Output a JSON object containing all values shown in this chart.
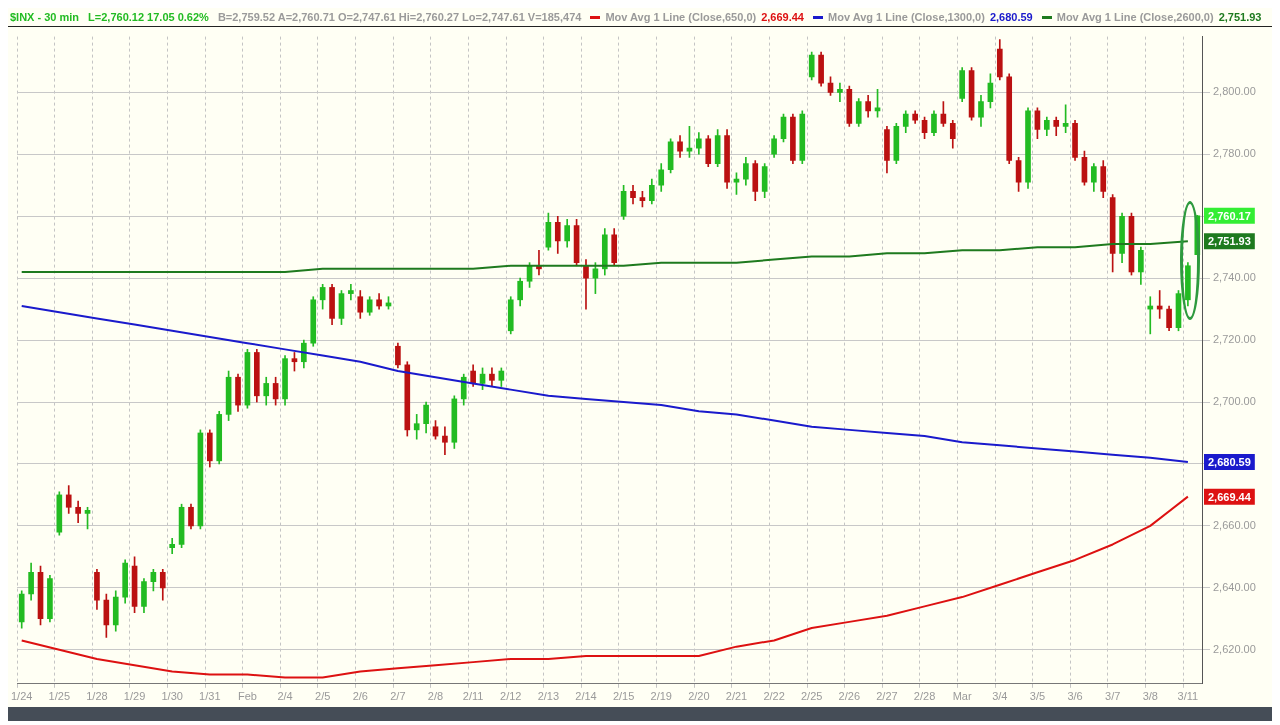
{
  "chart_data": {
    "type": "candlestick",
    "title": "$INX - 30 min",
    "subtitle": "L=2,760.12  17.05  0.62%",
    "annotations": [
      "B=2,759.52  A=2,760.71  O=2,747.61  Hi=2,760.27  Lo=2,747.61  V=185,474",
      "2,760.17"
    ],
    "categories": [
      "1/24",
      null,
      null,
      null,
      "1/25",
      null,
      null,
      null,
      "1/28",
      null,
      null,
      null,
      "1/29",
      null,
      null,
      null,
      "1/30",
      null,
      null,
      null,
      "1/31",
      null,
      null,
      null,
      "Feb",
      null,
      null,
      null,
      "2/4",
      null,
      null,
      null,
      "2/5",
      null,
      null,
      null,
      "2/6",
      null,
      null,
      null,
      "2/7",
      null,
      null,
      null,
      "2/8",
      null,
      null,
      null,
      "2/11",
      null,
      null,
      null,
      "2/12",
      null,
      null,
      null,
      "2/13",
      null,
      null,
      null,
      "2/14",
      null,
      null,
      null,
      "2/15",
      null,
      null,
      null,
      "2/19",
      null,
      null,
      null,
      "2/20",
      null,
      null,
      null,
      "2/21",
      null,
      null,
      null,
      "2/22",
      null,
      null,
      null,
      "2/25",
      null,
      null,
      null,
      "2/26",
      null,
      null,
      null,
      "2/27",
      null,
      null,
      null,
      "2/28",
      null,
      null,
      null,
      "Mar",
      null,
      null,
      null,
      "3/4",
      null,
      null,
      null,
      "3/5",
      null,
      null,
      null,
      "3/6",
      null,
      null,
      null,
      "3/7",
      null,
      null,
      null,
      "3/8",
      null,
      null,
      null,
      "3/11",
      null
    ],
    "ohlc": [
      [
        2629,
        2639,
        2627,
        2638
      ],
      [
        2638,
        2648,
        2636,
        2645
      ],
      [
        2645,
        2647,
        2628,
        2630
      ],
      [
        2630,
        2644,
        2629,
        2643
      ],
      [
        2658,
        2671,
        2657,
        2670
      ],
      [
        2670,
        2673,
        2664,
        2666
      ],
      [
        2666,
        2668,
        2661,
        2664
      ],
      [
        2664,
        2666,
        2659,
        2665
      ],
      [
        2645,
        2646,
        2633,
        2636
      ],
      [
        2636,
        2638,
        2624,
        2628
      ],
      [
        2628,
        2639,
        2626,
        2637
      ],
      [
        2637,
        2649,
        2635,
        2648
      ],
      [
        2647,
        2650,
        2632,
        2634
      ],
      [
        2634,
        2643,
        2632,
        2642
      ],
      [
        2642,
        2646,
        2639,
        2645
      ],
      [
        2645,
        2646,
        2636,
        2640
      ],
      [
        2653,
        2656,
        2651,
        2654
      ],
      [
        2654,
        2667,
        2653,
        2666
      ],
      [
        2666,
        2667,
        2659,
        2660
      ],
      [
        2660,
        2691,
        2659,
        2690
      ],
      [
        2690,
        2691,
        2679,
        2681
      ],
      [
        2681,
        2697,
        2680,
        2696
      ],
      [
        2696,
        2710,
        2694,
        2708
      ],
      [
        2708,
        2709,
        2697,
        2699
      ],
      [
        2699,
        2717,
        2698,
        2716
      ],
      [
        2716,
        2717,
        2700,
        2702
      ],
      [
        2702,
        2708,
        2699,
        2706
      ],
      [
        2706,
        2708,
        2699,
        2701
      ],
      [
        2701,
        2715,
        2699,
        2714
      ],
      [
        2714,
        2716,
        2710,
        2713
      ],
      [
        2713,
        2720,
        2711,
        2719
      ],
      [
        2719,
        2734,
        2718,
        2733
      ],
      [
        2733,
        2738,
        2730,
        2737
      ],
      [
        2737,
        2738,
        2725,
        2727
      ],
      [
        2727,
        2736,
        2725,
        2735
      ],
      [
        2735,
        2738,
        2733,
        2736
      ],
      [
        2734,
        2736,
        2727,
        2729
      ],
      [
        2729,
        2734,
        2728,
        2733
      ],
      [
        2733,
        2735,
        2730,
        2731
      ],
      [
        2731,
        2734,
        2730,
        2732
      ],
      [
        2718,
        2719,
        2711,
        2712
      ],
      [
        2712,
        2713,
        2689,
        2691
      ],
      [
        2691,
        2696,
        2688,
        2693
      ],
      [
        2693,
        2700,
        2690,
        2699
      ],
      [
        2692,
        2694,
        2688,
        2689
      ],
      [
        2689,
        2692,
        2683,
        2687
      ],
      [
        2687,
        2702,
        2685,
        2701
      ],
      [
        2701,
        2709,
        2699,
        2708
      ],
      [
        2710,
        2712,
        2705,
        2706
      ],
      [
        2706,
        2711,
        2704,
        2709
      ],
      [
        2709,
        2711,
        2705,
        2707
      ],
      [
        2707,
        2711,
        2705,
        2710
      ],
      [
        2723,
        2734,
        2722,
        2733
      ],
      [
        2733,
        2740,
        2731,
        2739
      ],
      [
        2739,
        2745,
        2737,
        2744
      ],
      [
        2744,
        2749,
        2741,
        2743
      ],
      [
        2750,
        2761,
        2749,
        2758
      ],
      [
        2758,
        2760,
        2748,
        2752
      ],
      [
        2752,
        2759,
        2750,
        2757
      ],
      [
        2757,
        2759,
        2744,
        2745
      ],
      [
        2744,
        2746,
        2730,
        2740
      ],
      [
        2740,
        2745,
        2735,
        2743
      ],
      [
        2743,
        2756,
        2741,
        2754
      ],
      [
        2754,
        2756,
        2744,
        2745
      ],
      [
        2760,
        2770,
        2759,
        2768
      ],
      [
        2768,
        2770,
        2764,
        2766
      ],
      [
        2766,
        2768,
        2763,
        2765
      ],
      [
        2765,
        2772,
        2764,
        2770
      ],
      [
        2770,
        2777,
        2768,
        2775
      ],
      [
        2775,
        2785,
        2774,
        2784
      ],
      [
        2784,
        2786,
        2779,
        2781
      ],
      [
        2781,
        2789,
        2779,
        2782
      ],
      [
        2782,
        2787,
        2780,
        2785
      ],
      [
        2785,
        2786,
        2776,
        2777
      ],
      [
        2777,
        2788,
        2776,
        2786
      ],
      [
        2786,
        2788,
        2769,
        2771
      ],
      [
        2771,
        2774,
        2767,
        2772
      ],
      [
        2772,
        2779,
        2770,
        2777
      ],
      [
        2777,
        2778,
        2765,
        2768
      ],
      [
        2768,
        2777,
        2766,
        2776
      ],
      [
        2780,
        2786,
        2779,
        2785
      ],
      [
        2785,
        2793,
        2784,
        2792
      ],
      [
        2792,
        2793,
        2777,
        2778
      ],
      [
        2778,
        2794,
        2777,
        2793
      ],
      [
        2805,
        2813,
        2804,
        2812
      ],
      [
        2812,
        2813,
        2802,
        2803
      ],
      [
        2803,
        2805,
        2799,
        2800
      ],
      [
        2800,
        2803,
        2797,
        2801
      ],
      [
        2801,
        2802,
        2789,
        2790
      ],
      [
        2790,
        2798,
        2789,
        2797
      ],
      [
        2797,
        2799,
        2792,
        2794
      ],
      [
        2794,
        2801,
        2792,
        2795
      ],
      [
        2788,
        2789,
        2774,
        2778
      ],
      [
        2778,
        2790,
        2777,
        2789
      ],
      [
        2789,
        2794,
        2787,
        2793
      ],
      [
        2793,
        2794,
        2790,
        2791
      ],
      [
        2791,
        2792,
        2785,
        2787
      ],
      [
        2787,
        2794,
        2786,
        2793
      ],
      [
        2793,
        2797,
        2789,
        2790
      ],
      [
        2790,
        2791,
        2782,
        2785
      ],
      [
        2798,
        2808,
        2797,
        2807
      ],
      [
        2807,
        2808,
        2791,
        2792
      ],
      [
        2792,
        2799,
        2789,
        2797
      ],
      [
        2797,
        2806,
        2795,
        2803
      ],
      [
        2814,
        2817,
        2804,
        2805
      ],
      [
        2805,
        2806,
        2777,
        2778
      ],
      [
        2778,
        2779,
        2768,
        2771
      ],
      [
        2771,
        2795,
        2769,
        2794
      ],
      [
        2794,
        2795,
        2785,
        2788
      ],
      [
        2788,
        2792,
        2786,
        2791
      ],
      [
        2791,
        2792,
        2786,
        2789
      ],
      [
        2789,
        2796,
        2787,
        2790
      ],
      [
        2790,
        2791,
        2778,
        2779
      ],
      [
        2779,
        2781,
        2770,
        2771
      ],
      [
        2771,
        2777,
        2768,
        2776
      ],
      [
        2776,
        2778,
        2766,
        2768
      ],
      [
        2766,
        2767,
        2742,
        2748
      ],
      [
        2748,
        2761,
        2745,
        2760
      ],
      [
        2760,
        2761,
        2741,
        2742
      ],
      [
        2742,
        2750,
        2738,
        2749
      ],
      [
        2730,
        2734,
        2722,
        2731
      ],
      [
        2731,
        2736,
        2727,
        2730
      ],
      [
        2730,
        2731,
        2723,
        2724
      ],
      [
        2724,
        2736,
        2723,
        2735
      ],
      [
        2733,
        2745,
        2731,
        2744
      ],
      [
        2747.61,
        2760.27,
        2747.61,
        2760.12
      ]
    ],
    "series": [
      {
        "name": "Mov Avg 1 Line (Close,650,0)",
        "type": "line",
        "color": "#dd1111",
        "x": [
          "1/24",
          "1/25",
          "1/28",
          "1/29",
          "1/30",
          "1/31",
          "Feb",
          "2/4",
          "2/5",
          "2/6",
          "2/7",
          "2/8",
          "2/11",
          "2/12",
          "2/13",
          "2/14",
          "2/15",
          "2/19",
          "2/20",
          "2/21",
          "2/22",
          "2/25",
          "2/26",
          "2/27",
          "2/28",
          "Mar",
          "3/4",
          "3/5",
          "3/6",
          "3/7",
          "3/8",
          "3/11"
        ],
        "values": [
          2623,
          2620,
          2617,
          2615,
          2613,
          2612,
          2612,
          2611,
          2611,
          2613,
          2614,
          2615,
          2616,
          2617,
          2617,
          2618,
          2618,
          2618,
          2618,
          2621,
          2623,
          2627,
          2629,
          2631,
          2634,
          2637,
          2641,
          2645,
          2649,
          2654,
          2660,
          2669.44
        ],
        "value_labels": [
          null,
          null,
          null,
          null,
          null,
          null,
          null,
          null,
          null,
          null,
          null,
          null,
          null,
          null,
          null,
          null,
          null,
          null,
          null,
          null,
          null,
          null,
          null,
          null,
          null,
          null,
          null,
          null,
          null,
          null,
          null,
          "2,669.44"
        ]
      },
      {
        "name": "Mov Avg 1 Line (Close,1300,0)",
        "type": "line",
        "color": "#1a1acc",
        "x": [
          "1/24",
          "1/25",
          "1/28",
          "1/29",
          "1/30",
          "1/31",
          "Feb",
          "2/4",
          "2/5",
          "2/6",
          "2/7",
          "2/8",
          "2/11",
          "2/12",
          "2/13",
          "2/14",
          "2/15",
          "2/19",
          "2/20",
          "2/21",
          "2/22",
          "2/25",
          "2/26",
          "2/27",
          "2/28",
          "Mar",
          "3/4",
          "3/5",
          "3/6",
          "3/7",
          "3/8",
          "3/11"
        ],
        "values": [
          2731,
          2729,
          2727,
          2725,
          2723,
          2721,
          2719,
          2717,
          2715,
          2713,
          2710,
          2708,
          2706,
          2704,
          2702,
          2701,
          2700,
          2699,
          2697,
          2696,
          2694,
          2692,
          2691,
          2690,
          2689,
          2687,
          2686,
          2685,
          2684,
          2683,
          2682,
          2680.59
        ],
        "value_labels": [
          null,
          null,
          null,
          null,
          null,
          null,
          null,
          null,
          null,
          null,
          null,
          null,
          null,
          null,
          null,
          null,
          null,
          null,
          null,
          null,
          null,
          null,
          null,
          null,
          null,
          null,
          null,
          null,
          null,
          null,
          null,
          "2,680.59"
        ]
      },
      {
        "name": "Mov Avg 1 Line (Close,2600,0)",
        "type": "line",
        "color": "#1e7a1e",
        "x": [
          "1/24",
          "1/25",
          "1/28",
          "1/29",
          "1/30",
          "1/31",
          "Feb",
          "2/4",
          "2/5",
          "2/6",
          "2/7",
          "2/8",
          "2/11",
          "2/12",
          "2/13",
          "2/14",
          "2/15",
          "2/19",
          "2/20",
          "2/21",
          "2/22",
          "2/25",
          "2/26",
          "2/27",
          "2/28",
          "Mar",
          "3/4",
          "3/5",
          "3/6",
          "3/7",
          "3/8",
          "3/11"
        ],
        "values": [
          2742,
          2742,
          2742,
          2742,
          2742,
          2742,
          2742,
          2742,
          2743,
          2743,
          2743,
          2743,
          2743,
          2744,
          2744,
          2744,
          2744,
          2745,
          2745,
          2745,
          2746,
          2747,
          2747,
          2748,
          2748,
          2749,
          2749,
          2750,
          2750,
          2751,
          2751,
          2751.93
        ],
        "value_labels": [
          null,
          null,
          null,
          null,
          null,
          null,
          null,
          null,
          null,
          null,
          null,
          null,
          null,
          null,
          null,
          null,
          null,
          null,
          null,
          null,
          null,
          null,
          null,
          null,
          null,
          null,
          null,
          null,
          null,
          null,
          null,
          "2,751.93"
        ]
      }
    ],
    "ylim": [
      2609,
      2818
    ],
    "yticks": [
      {
        "value": 2620,
        "label": "2,620.00"
      },
      {
        "value": 2640,
        "label": "2,640.00"
      },
      {
        "value": 2660,
        "label": "2,660.00"
      },
      {
        "value": 2680,
        "label": null
      },
      {
        "value": 2700,
        "label": "2,700.00"
      },
      {
        "value": 2720,
        "label": "2,720.00"
      },
      {
        "value": 2740,
        "label": "2,740.00"
      },
      {
        "value": 2760,
        "label": null
      },
      {
        "value": 2780,
        "label": "2,780.00"
      },
      {
        "value": 2800,
        "label": "2,800.00"
      }
    ],
    "grid": true,
    "legend": "top",
    "marker": "none"
  }
}
